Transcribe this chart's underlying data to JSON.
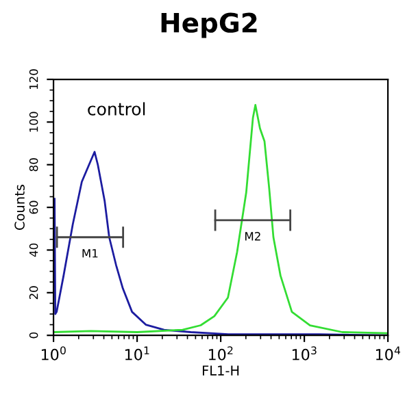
{
  "chart_data": {
    "type": "line",
    "title": "HepG2",
    "xlabel": "FL1-H",
    "ylabel": "Counts",
    "log": "x",
    "xlim": [
      1,
      10000
    ],
    "xticks": [
      {
        "value": 1,
        "label": "10$^{0}$"
      },
      {
        "value": 10,
        "label": "10$^{1}$"
      },
      {
        "value": 100,
        "label": "10$^{2}$"
      },
      {
        "value": 1000,
        "label": "10$^{3}$"
      },
      {
        "value": 10000,
        "label": "10$^{4}$"
      }
    ],
    "ylim": [
      0,
      120
    ],
    "yticks": [
      0,
      20,
      40,
      60,
      80,
      100,
      120
    ],
    "grid": false,
    "legend": false,
    "series": [
      {
        "color": "#1c1ca0",
        "x": [
          1.03,
          1.05,
          1.09,
          1.32,
          1.7,
          2.18,
          2.8,
          3.1,
          3.39,
          4.09,
          4.64,
          5.6,
          6.75,
          8.7,
          12.7,
          21,
          44,
          123,
          1500,
          10000
        ],
        "values": [
          64,
          10,
          11,
          28,
          52,
          72,
          82,
          86,
          80,
          63,
          46,
          33,
          22,
          11,
          5,
          2.6,
          1.5,
          0.5,
          0.5,
          0
        ]
      },
      {
        "color": "#33dd33",
        "x": [
          1.0,
          2.8,
          10,
          35,
          57.6,
          84,
          122,
          157,
          202,
          243,
          260,
          295,
          334,
          380,
          427,
          519,
          710,
          1170,
          2850,
          10000
        ],
        "values": [
          1.5,
          2,
          1.5,
          2.6,
          4.7,
          9,
          17.7,
          39,
          67,
          102,
          108,
          97,
          91,
          69,
          46,
          28,
          11,
          4.7,
          1.5,
          1
        ]
      },
      {
        "name": "M1",
        "color": "#444444",
        "x": [
          1.1,
          6.8
        ],
        "values": [
          46,
          46
        ],
        "errors": [
          5,
          5
        ]
      },
      {
        "name": "M2",
        "color": "#444444",
        "x": [
          86,
          680
        ],
        "values": [
          54,
          54
        ],
        "errors": [
          5,
          5
        ]
      }
    ],
    "annotations": [
      "control"
    ]
  }
}
